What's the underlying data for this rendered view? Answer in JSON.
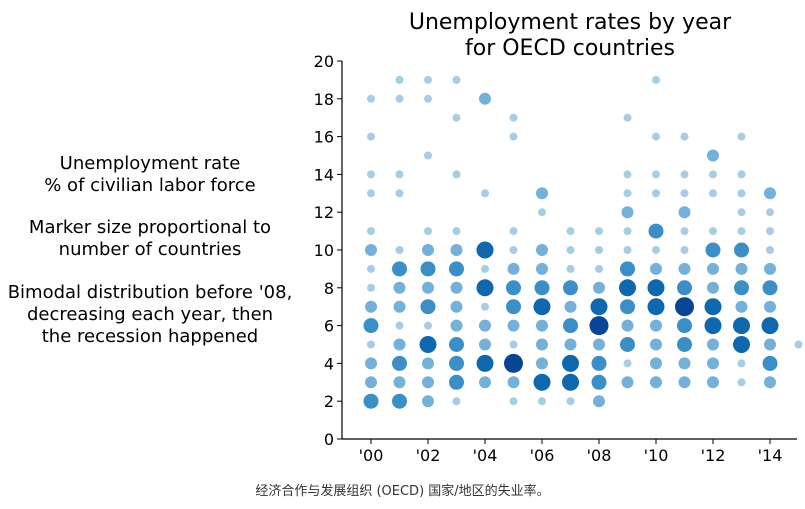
{
  "chart_data": {
    "type": "scatter",
    "title": "Unemployment rates by year\nfor OECD countries",
    "xlabel": "",
    "ylabel": "",
    "xlim": [
      -0.5,
      14.9
    ],
    "ylim": [
      0,
      20
    ],
    "x_ticks": [
      0,
      2,
      4,
      6,
      8,
      10,
      12,
      14
    ],
    "x_tick_labels": [
      "'00",
      "'02",
      "'04",
      "'06",
      "'08",
      "'10",
      "'12",
      "'14"
    ],
    "y_ticks": [
      0,
      2,
      4,
      6,
      8,
      10,
      12,
      14,
      16,
      18,
      20
    ],
    "grid": false,
    "legend": "none",
    "encoding": "marker size and color intensity proportional to number of countries",
    "color_scale": [
      "#a6cde3",
      "#74b0d8",
      "#3b8fc6",
      "#0f67ae",
      "#084594"
    ],
    "points": [
      {
        "x": 0,
        "y": 2,
        "n": 3
      },
      {
        "x": 0,
        "y": 3,
        "n": 2
      },
      {
        "x": 0,
        "y": 4,
        "n": 2
      },
      {
        "x": 0,
        "y": 5,
        "n": 1
      },
      {
        "x": 0,
        "y": 6,
        "n": 3
      },
      {
        "x": 0,
        "y": 7,
        "n": 2
      },
      {
        "x": 0,
        "y": 8,
        "n": 1
      },
      {
        "x": 0,
        "y": 9,
        "n": 1
      },
      {
        "x": 0,
        "y": 10,
        "n": 2
      },
      {
        "x": 0,
        "y": 11,
        "n": 1
      },
      {
        "x": 0,
        "y": 13,
        "n": 1
      },
      {
        "x": 0,
        "y": 14,
        "n": 1
      },
      {
        "x": 0,
        "y": 16,
        "n": 1
      },
      {
        "x": 0,
        "y": 18,
        "n": 1
      },
      {
        "x": 1,
        "y": 2,
        "n": 3
      },
      {
        "x": 1,
        "y": 3,
        "n": 2
      },
      {
        "x": 1,
        "y": 4,
        "n": 3
      },
      {
        "x": 1,
        "y": 5,
        "n": 2
      },
      {
        "x": 1,
        "y": 6,
        "n": 1
      },
      {
        "x": 1,
        "y": 7,
        "n": 2
      },
      {
        "x": 1,
        "y": 8,
        "n": 2
      },
      {
        "x": 1,
        "y": 9,
        "n": 3
      },
      {
        "x": 1,
        "y": 10,
        "n": 1
      },
      {
        "x": 1,
        "y": 13,
        "n": 1
      },
      {
        "x": 1,
        "y": 14,
        "n": 1
      },
      {
        "x": 1,
        "y": 18,
        "n": 1
      },
      {
        "x": 1,
        "y": 19,
        "n": 1
      },
      {
        "x": 2,
        "y": 2,
        "n": 2
      },
      {
        "x": 2,
        "y": 3,
        "n": 2
      },
      {
        "x": 2,
        "y": 4,
        "n": 2
      },
      {
        "x": 2,
        "y": 5,
        "n": 4
      },
      {
        "x": 2,
        "y": 6,
        "n": 1
      },
      {
        "x": 2,
        "y": 7,
        "n": 3
      },
      {
        "x": 2,
        "y": 8,
        "n": 2
      },
      {
        "x": 2,
        "y": 9,
        "n": 3
      },
      {
        "x": 2,
        "y": 10,
        "n": 2
      },
      {
        "x": 2,
        "y": 11,
        "n": 1
      },
      {
        "x": 2,
        "y": 15,
        "n": 1
      },
      {
        "x": 2,
        "y": 18,
        "n": 1
      },
      {
        "x": 2,
        "y": 19,
        "n": 1
      },
      {
        "x": 3,
        "y": 2,
        "n": 1
      },
      {
        "x": 3,
        "y": 3,
        "n": 3
      },
      {
        "x": 3,
        "y": 4,
        "n": 3
      },
      {
        "x": 3,
        "y": 5,
        "n": 3
      },
      {
        "x": 3,
        "y": 6,
        "n": 2
      },
      {
        "x": 3,
        "y": 7,
        "n": 2
      },
      {
        "x": 3,
        "y": 8,
        "n": 2
      },
      {
        "x": 3,
        "y": 9,
        "n": 3
      },
      {
        "x": 3,
        "y": 10,
        "n": 2
      },
      {
        "x": 3,
        "y": 11,
        "n": 1
      },
      {
        "x": 3,
        "y": 14,
        "n": 1
      },
      {
        "x": 3,
        "y": 17,
        "n": 1
      },
      {
        "x": 3,
        "y": 19,
        "n": 1
      },
      {
        "x": 4,
        "y": 3,
        "n": 2
      },
      {
        "x": 4,
        "y": 4,
        "n": 4
      },
      {
        "x": 4,
        "y": 5,
        "n": 2
      },
      {
        "x": 4,
        "y": 6,
        "n": 2
      },
      {
        "x": 4,
        "y": 7,
        "n": 1
      },
      {
        "x": 4,
        "y": 8,
        "n": 4
      },
      {
        "x": 4,
        "y": 9,
        "n": 1
      },
      {
        "x": 4,
        "y": 10,
        "n": 4
      },
      {
        "x": 4,
        "y": 13,
        "n": 1
      },
      {
        "x": 4,
        "y": 18,
        "n": 2
      },
      {
        "x": 5,
        "y": 2,
        "n": 1
      },
      {
        "x": 5,
        "y": 3,
        "n": 2
      },
      {
        "x": 5,
        "y": 4,
        "n": 5
      },
      {
        "x": 5,
        "y": 5,
        "n": 1
      },
      {
        "x": 5,
        "y": 6,
        "n": 2
      },
      {
        "x": 5,
        "y": 7,
        "n": 3
      },
      {
        "x": 5,
        "y": 8,
        "n": 3
      },
      {
        "x": 5,
        "y": 9,
        "n": 2
      },
      {
        "x": 5,
        "y": 10,
        "n": 1
      },
      {
        "x": 5,
        "y": 11,
        "n": 1
      },
      {
        "x": 5,
        "y": 16,
        "n": 1
      },
      {
        "x": 5,
        "y": 17,
        "n": 1
      },
      {
        "x": 6,
        "y": 2,
        "n": 1
      },
      {
        "x": 6,
        "y": 3,
        "n": 4
      },
      {
        "x": 6,
        "y": 4,
        "n": 2
      },
      {
        "x": 6,
        "y": 5,
        "n": 2
      },
      {
        "x": 6,
        "y": 6,
        "n": 2
      },
      {
        "x": 6,
        "y": 7,
        "n": 4
      },
      {
        "x": 6,
        "y": 8,
        "n": 3
      },
      {
        "x": 6,
        "y": 9,
        "n": 2
      },
      {
        "x": 6,
        "y": 10,
        "n": 2
      },
      {
        "x": 6,
        "y": 12,
        "n": 1
      },
      {
        "x": 6,
        "y": 13,
        "n": 2
      },
      {
        "x": 7,
        "y": 2,
        "n": 1
      },
      {
        "x": 7,
        "y": 3,
        "n": 4
      },
      {
        "x": 7,
        "y": 4,
        "n": 4
      },
      {
        "x": 7,
        "y": 5,
        "n": 2
      },
      {
        "x": 7,
        "y": 6,
        "n": 3
      },
      {
        "x": 7,
        "y": 7,
        "n": 2
      },
      {
        "x": 7,
        "y": 8,
        "n": 3
      },
      {
        "x": 7,
        "y": 9,
        "n": 1
      },
      {
        "x": 7,
        "y": 10,
        "n": 1
      },
      {
        "x": 7,
        "y": 11,
        "n": 1
      },
      {
        "x": 8,
        "y": 2,
        "n": 2
      },
      {
        "x": 8,
        "y": 3,
        "n": 3
      },
      {
        "x": 8,
        "y": 4,
        "n": 3
      },
      {
        "x": 8,
        "y": 5,
        "n": 2
      },
      {
        "x": 8,
        "y": 6,
        "n": 5
      },
      {
        "x": 8,
        "y": 7,
        "n": 4
      },
      {
        "x": 8,
        "y": 8,
        "n": 2
      },
      {
        "x": 8,
        "y": 9,
        "n": 1
      },
      {
        "x": 8,
        "y": 10,
        "n": 1
      },
      {
        "x": 8,
        "y": 11,
        "n": 1
      },
      {
        "x": 9,
        "y": 3,
        "n": 2
      },
      {
        "x": 9,
        "y": 4,
        "n": 1
      },
      {
        "x": 9,
        "y": 5,
        "n": 3
      },
      {
        "x": 9,
        "y": 6,
        "n": 2
      },
      {
        "x": 9,
        "y": 7,
        "n": 3
      },
      {
        "x": 9,
        "y": 8,
        "n": 4
      },
      {
        "x": 9,
        "y": 9,
        "n": 3
      },
      {
        "x": 9,
        "y": 10,
        "n": 1
      },
      {
        "x": 9,
        "y": 11,
        "n": 1
      },
      {
        "x": 9,
        "y": 12,
        "n": 2
      },
      {
        "x": 9,
        "y": 13,
        "n": 1
      },
      {
        "x": 9,
        "y": 14,
        "n": 1
      },
      {
        "x": 9,
        "y": 17,
        "n": 1
      },
      {
        "x": 10,
        "y": 3,
        "n": 2
      },
      {
        "x": 10,
        "y": 4,
        "n": 2
      },
      {
        "x": 10,
        "y": 5,
        "n": 2
      },
      {
        "x": 10,
        "y": 6,
        "n": 2
      },
      {
        "x": 10,
        "y": 7,
        "n": 4
      },
      {
        "x": 10,
        "y": 8,
        "n": 4
      },
      {
        "x": 10,
        "y": 9,
        "n": 2
      },
      {
        "x": 10,
        "y": 10,
        "n": 1
      },
      {
        "x": 10,
        "y": 11,
        "n": 3
      },
      {
        "x": 10,
        "y": 13,
        "n": 1
      },
      {
        "x": 10,
        "y": 14,
        "n": 1
      },
      {
        "x": 10,
        "y": 16,
        "n": 1
      },
      {
        "x": 10,
        "y": 19,
        "n": 1
      },
      {
        "x": 11,
        "y": 3,
        "n": 2
      },
      {
        "x": 11,
        "y": 4,
        "n": 2
      },
      {
        "x": 11,
        "y": 5,
        "n": 3
      },
      {
        "x": 11,
        "y": 6,
        "n": 3
      },
      {
        "x": 11,
        "y": 7,
        "n": 5
      },
      {
        "x": 11,
        "y": 8,
        "n": 3
      },
      {
        "x": 11,
        "y": 9,
        "n": 2
      },
      {
        "x": 11,
        "y": 10,
        "n": 1
      },
      {
        "x": 11,
        "y": 11,
        "n": 1
      },
      {
        "x": 11,
        "y": 12,
        "n": 2
      },
      {
        "x": 11,
        "y": 13,
        "n": 1
      },
      {
        "x": 11,
        "y": 14,
        "n": 1
      },
      {
        "x": 11,
        "y": 16,
        "n": 1
      },
      {
        "x": 12,
        "y": 3,
        "n": 2
      },
      {
        "x": 12,
        "y": 4,
        "n": 2
      },
      {
        "x": 12,
        "y": 5,
        "n": 2
      },
      {
        "x": 12,
        "y": 6,
        "n": 4
      },
      {
        "x": 12,
        "y": 7,
        "n": 4
      },
      {
        "x": 12,
        "y": 8,
        "n": 2
      },
      {
        "x": 12,
        "y": 9,
        "n": 2
      },
      {
        "x": 12,
        "y": 10,
        "n": 3
      },
      {
        "x": 12,
        "y": 11,
        "n": 1
      },
      {
        "x": 12,
        "y": 13,
        "n": 1
      },
      {
        "x": 12,
        "y": 14,
        "n": 1
      },
      {
        "x": 12,
        "y": 15,
        "n": 2
      },
      {
        "x": 13,
        "y": 3,
        "n": 1
      },
      {
        "x": 13,
        "y": 4,
        "n": 1
      },
      {
        "x": 13,
        "y": 5,
        "n": 4
      },
      {
        "x": 13,
        "y": 6,
        "n": 4
      },
      {
        "x": 13,
        "y": 7,
        "n": 2
      },
      {
        "x": 13,
        "y": 8,
        "n": 3
      },
      {
        "x": 13,
        "y": 9,
        "n": 2
      },
      {
        "x": 13,
        "y": 10,
        "n": 3
      },
      {
        "x": 13,
        "y": 11,
        "n": 1
      },
      {
        "x": 13,
        "y": 12,
        "n": 1
      },
      {
        "x": 13,
        "y": 13,
        "n": 1
      },
      {
        "x": 13,
        "y": 14,
        "n": 1
      },
      {
        "x": 13,
        "y": 16,
        "n": 1
      },
      {
        "x": 14,
        "y": 3,
        "n": 2
      },
      {
        "x": 14,
        "y": 4,
        "n": 3
      },
      {
        "x": 14,
        "y": 5,
        "n": 2
      },
      {
        "x": 14,
        "y": 6,
        "n": 4
      },
      {
        "x": 14,
        "y": 7,
        "n": 2
      },
      {
        "x": 14,
        "y": 8,
        "n": 3
      },
      {
        "x": 14,
        "y": 9,
        "n": 2
      },
      {
        "x": 14,
        "y": 10,
        "n": 1
      },
      {
        "x": 14,
        "y": 11,
        "n": 1
      },
      {
        "x": 14,
        "y": 12,
        "n": 1
      },
      {
        "x": 14,
        "y": 13,
        "n": 2
      },
      {
        "x": 15,
        "y": 5,
        "n": 1
      }
    ]
  },
  "annotations": {
    "note_1": "Unemployment rate\n% of civilian labor force",
    "note_2": "Marker size proportional to\nnumber of countries",
    "note_3": "Bimodal distribution before '08,\ndecreasing each year, then\nthe recession happened"
  },
  "caption": "经济合作与发展组织 (OECD) 国家/地区的失业率。"
}
